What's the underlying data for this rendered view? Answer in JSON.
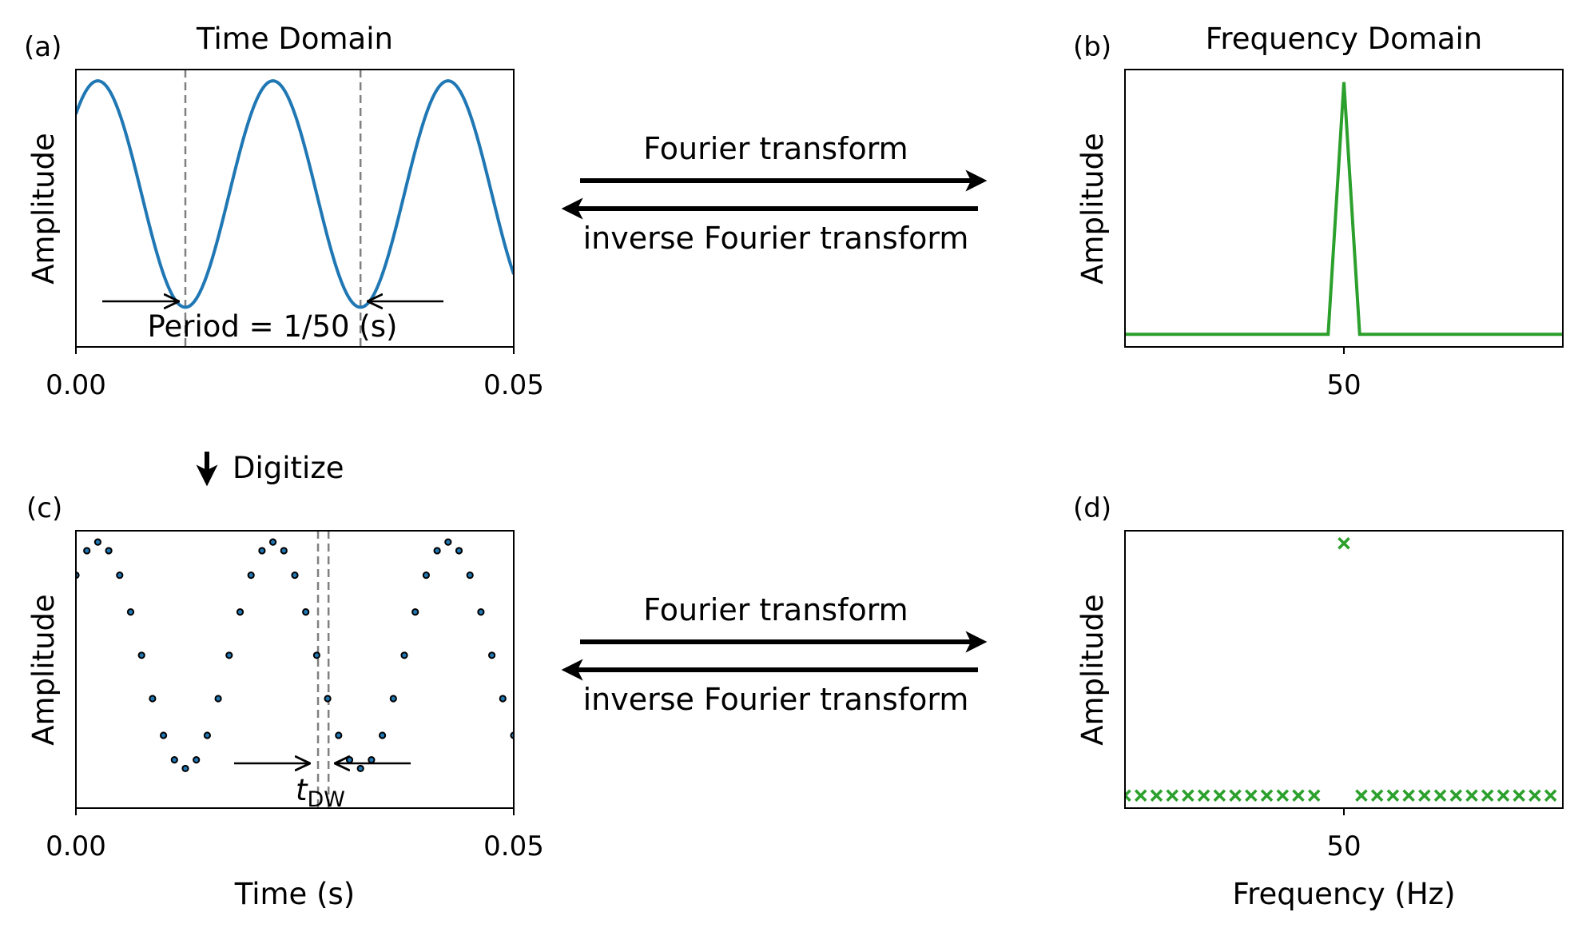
{
  "labels": {
    "panel_a": "(a)",
    "panel_b": "(b)",
    "panel_c": "(c)",
    "panel_d": "(d)",
    "time_domain_title": "Time Domain",
    "frequency_domain_title": "Frequency Domain",
    "fourier_top": "Fourier transform",
    "inverse_top": "inverse Fourier transform",
    "fourier_bottom": "Fourier transform",
    "inverse_bottom": "inverse Fourier transform",
    "digitize": "Digitize",
    "period_annotation": "Period = 1/50 (s)",
    "dwell_t": "t",
    "dwell_sub": "DW"
  },
  "colors": {
    "time_signal": "#1f77b4",
    "frequency_signal": "#2ca02c",
    "guide_lines": "#808080",
    "axes": "#000000"
  },
  "chart_data": [
    {
      "id": "a",
      "type": "line",
      "title": "Time Domain",
      "xlabel": "",
      "ylabel": "Amplitude",
      "xlim": [
        0,
        0.05
      ],
      "ylim": [
        -1.35,
        1.1
      ],
      "xticks": [
        0,
        0.05
      ],
      "xtick_labels": [
        "0.00",
        "0.05"
      ],
      "frequency_hz": 50,
      "phase_deg": 45,
      "function": "cos(2*pi*50*t) + sin(2*pi*50*t) normalized, amplitude 1",
      "guide_lines_x": [
        0.0125,
        0.0325
      ],
      "annotation": "Period = 1/50 (s)"
    },
    {
      "id": "b",
      "type": "line",
      "title": "Frequency Domain",
      "xlabel": "",
      "ylabel": "Amplitude",
      "xlim": [
        25,
        75
      ],
      "ylim": [
        -0.05,
        1.05
      ],
      "xticks": [
        50
      ],
      "xtick_labels": [
        "50"
      ],
      "x": [
        25,
        48.2,
        50,
        51.8,
        75
      ],
      "y": [
        0,
        0,
        1,
        0,
        0
      ]
    },
    {
      "id": "c",
      "type": "scatter",
      "xlabel": "Time (s)",
      "ylabel": "Amplitude",
      "xlim": [
        0,
        0.05
      ],
      "ylim": [
        -1.35,
        1.1
      ],
      "xticks": [
        0,
        0.05
      ],
      "xtick_labels": [
        "0.00",
        "0.05"
      ],
      "sample_interval_s": 0.00125,
      "sample_count": 41,
      "guide_lines_x": [
        0.02765,
        0.02885
      ],
      "annotation": "t_DW"
    },
    {
      "id": "d",
      "type": "scatter",
      "xlabel": "Frequency (Hz)",
      "ylabel": "Amplitude",
      "xlim": [
        25,
        75
      ],
      "ylim": [
        -0.05,
        1.05
      ],
      "xticks": [
        50
      ],
      "xtick_labels": [
        "50"
      ],
      "marker": "x",
      "x_start": 25,
      "x_step": 1.8,
      "x_end": 75,
      "peak_x": 50,
      "peak_y": 1,
      "baseline_y": 0
    }
  ]
}
